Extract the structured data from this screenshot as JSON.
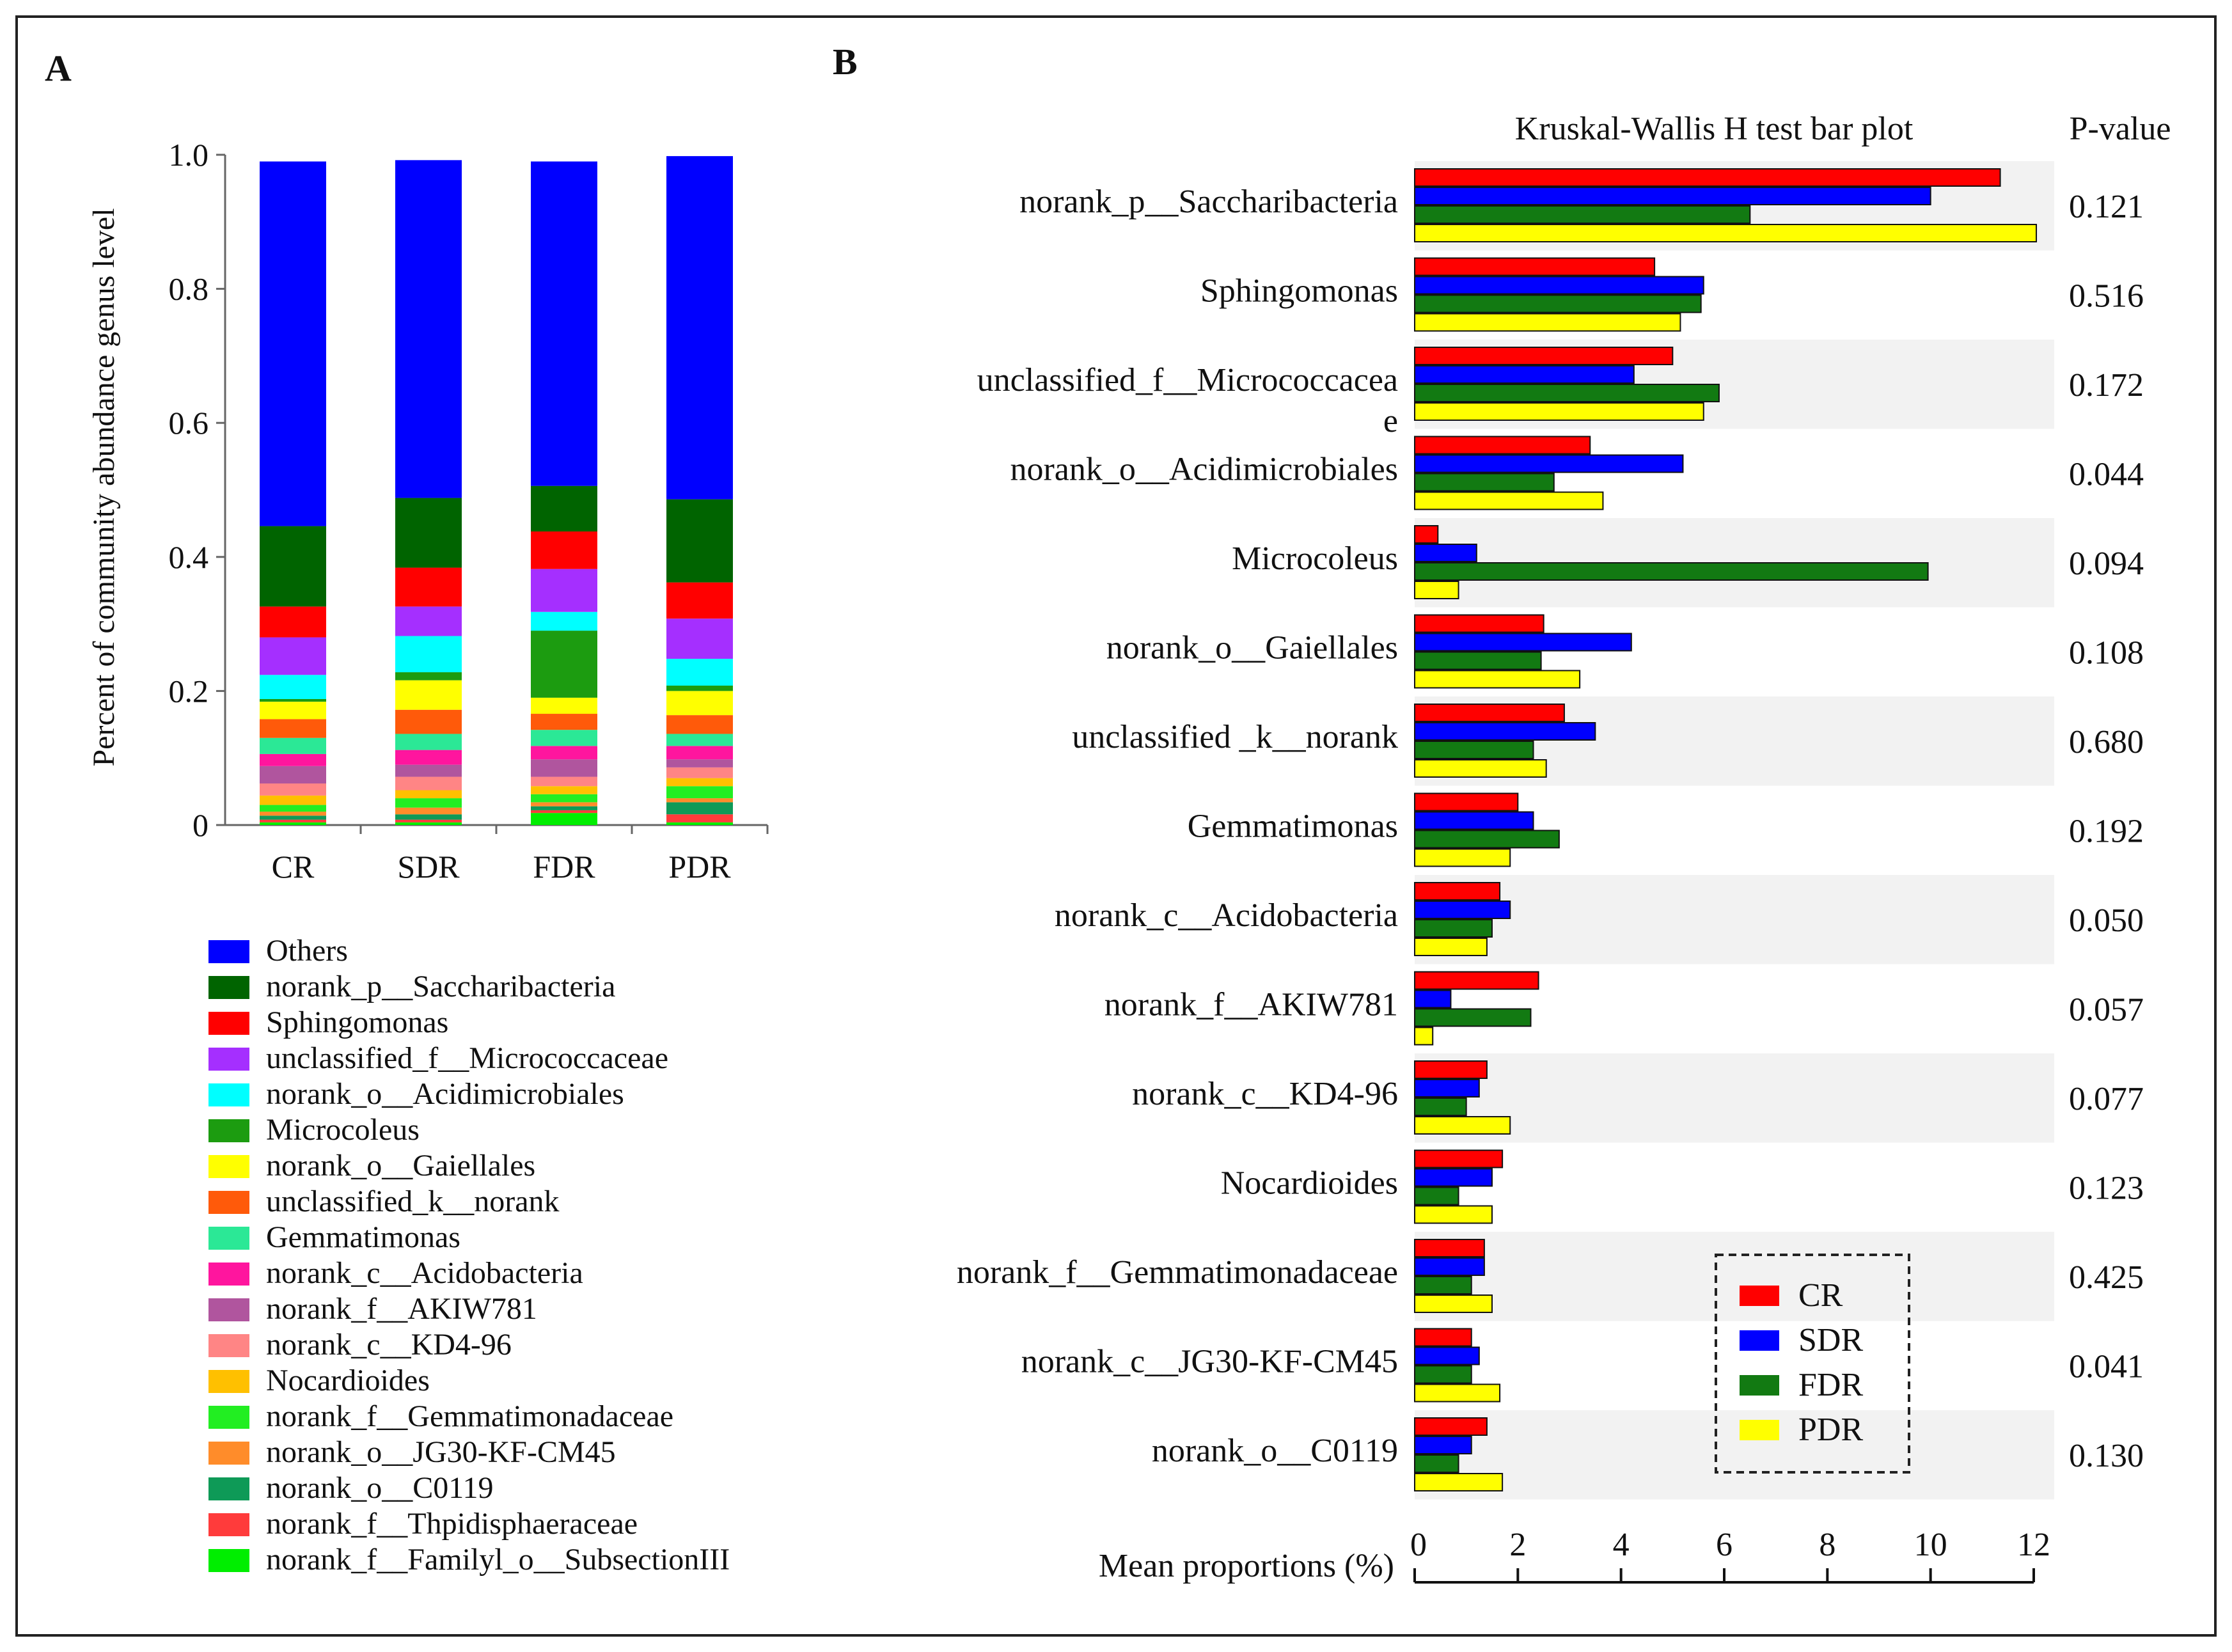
{
  "panel_labels": {
    "a": "A",
    "b": "B"
  },
  "chart_data": [
    {
      "type": "bar",
      "stacked": true,
      "panel": "A",
      "ylabel": "Percent of community abundance genus level",
      "xlabel": "",
      "ylim": [
        0,
        1.0
      ],
      "yticks": [
        "0",
        "0.2",
        "0.4",
        "0.6",
        "0.8",
        "1.0"
      ],
      "categories": [
        "CR",
        "SDR",
        "FDR",
        "PDR"
      ],
      "series": [
        {
          "name": "norank_f__Familyl_o__SubsectionIII",
          "color": "#00ee00",
          "values": [
            0.004,
            0.004,
            0.018,
            0.004
          ]
        },
        {
          "name": "norank_f__Thpidisphaeraceae",
          "color": "#ff3b3b",
          "values": [
            0.004,
            0.004,
            0.004,
            0.012
          ]
        },
        {
          "name": "norank_o__C0119",
          "color": "#0e9a57",
          "values": [
            0.006,
            0.008,
            0.006,
            0.018
          ]
        },
        {
          "name": "norank_o__JG30-KF-CM45",
          "color": "#ff8c2a",
          "values": [
            0.006,
            0.01,
            0.006,
            0.006
          ]
        },
        {
          "name": "norank_f__Gemmatimonadaceae",
          "color": "#22ee22",
          "values": [
            0.01,
            0.014,
            0.012,
            0.018
          ]
        },
        {
          "name": "Nocardioides",
          "color": "#ffc000",
          "values": [
            0.014,
            0.012,
            0.012,
            0.012
          ]
        },
        {
          "name": "norank_c__KD4-96",
          "color": "#ff8585",
          "values": [
            0.018,
            0.02,
            0.014,
            0.016
          ]
        },
        {
          "name": "norank_f__AKIW781",
          "color": "#b0559e",
          "values": [
            0.026,
            0.018,
            0.026,
            0.012
          ]
        },
        {
          "name": "norank_c__Acidobacteria",
          "color": "#ff159e",
          "values": [
            0.018,
            0.022,
            0.02,
            0.02
          ]
        },
        {
          "name": "Gemmatimonas",
          "color": "#2be896",
          "values": [
            0.024,
            0.024,
            0.024,
            0.018
          ]
        },
        {
          "name": "unclassified_k__norank",
          "color": "#ff5a0a",
          "values": [
            0.028,
            0.036,
            0.024,
            0.028
          ]
        },
        {
          "name": "norank_o__Gaiellales",
          "color": "#ffff00",
          "values": [
            0.026,
            0.044,
            0.024,
            0.036
          ]
        },
        {
          "name": "Microcoleus",
          "color": "#1c9c10",
          "values": [
            0.004,
            0.012,
            0.1,
            0.008
          ]
        },
        {
          "name": "norank_o__Acidimicrobiales",
          "color": "#00ffff",
          "values": [
            0.036,
            0.054,
            0.028,
            0.04
          ]
        },
        {
          "name": "unclassified_f__Micrococcaceae",
          "color": "#a52fff",
          "values": [
            0.056,
            0.044,
            0.064,
            0.06
          ]
        },
        {
          "name": "Sphingomonas",
          "color": "#ff0000",
          "values": [
            0.046,
            0.058,
            0.056,
            0.054
          ]
        },
        {
          "name": "norank_p__Saccharibacteria",
          "color": "#006400",
          "values": [
            0.12,
            0.104,
            0.068,
            0.124
          ]
        },
        {
          "name": "Others",
          "color": "#0000ff",
          "values": [
            0.544,
            0.504,
            0.484,
            0.512
          ]
        }
      ],
      "legend": [
        {
          "name": "Others",
          "color": "#0000ff"
        },
        {
          "name": "norank_p__Saccharibacteria",
          "color": "#006400"
        },
        {
          "name": "Sphingomonas",
          "color": "#ff0000"
        },
        {
          "name": "unclassified_f__Micrococcaceae",
          "color": "#a52fff"
        },
        {
          "name": "norank_o__Acidimicrobiales",
          "color": "#00ffff"
        },
        {
          "name": "Microcoleus",
          "color": "#1c9c10"
        },
        {
          "name": "norank_o__Gaiellales",
          "color": "#ffff00"
        },
        {
          "name": "unclassified_k__norank",
          "color": "#ff5a0a"
        },
        {
          "name": "Gemmatimonas",
          "color": "#2be896"
        },
        {
          "name": "norank_c__Acidobacteria",
          "color": "#ff159e"
        },
        {
          "name": "norank_f__AKIW781",
          "color": "#b0559e"
        },
        {
          "name": "norank_c__KD4-96",
          "color": "#ff8585"
        },
        {
          "name": "Nocardioides",
          "color": "#ffc000"
        },
        {
          "name": "norank_f__Gemmatimonadaceae",
          "color": "#22ee22"
        },
        {
          "name": "norank_o__JG30-KF-CM45",
          "color": "#ff8c2a"
        },
        {
          "name": "norank_o__C0119",
          "color": "#0e9a57"
        },
        {
          "name": "norank_f__Thpidisphaeraceae",
          "color": "#ff3b3b"
        },
        {
          "name": "norank_f__Familyl_o__SubsectionIII",
          "color": "#00ee00"
        }
      ]
    },
    {
      "type": "bar",
      "orientation": "horizontal",
      "panel": "B",
      "title": "Kruskal-Wallis H test bar plot",
      "pvalue_header": "P-value",
      "xlabel": "Mean proportions (%)",
      "xlim": [
        0,
        12
      ],
      "xticks": [
        "0",
        "2",
        "4",
        "6",
        "8",
        "10",
        "12"
      ],
      "categories": [
        {
          "label": "norank_p__Saccharibacteria",
          "pvalue": "0.121"
        },
        {
          "label": "Sphingomonas",
          "pvalue": "0.516"
        },
        {
          "label": "unclassified_f__Micrococcacea",
          "label2": "e",
          "pvalue": "0.172"
        },
        {
          "label": "norank_o__Acidimicrobiales",
          "pvalue": "0.044"
        },
        {
          "label": "Microcoleus",
          "pvalue": "0.094"
        },
        {
          "label": "norank_o__Gaiellales",
          "pvalue": "0.108"
        },
        {
          "label": "unclassified _k__norank",
          "pvalue": "0.680"
        },
        {
          "label": "Gemmatimonas",
          "pvalue": "0.192"
        },
        {
          "label": "norank_c__Acidobacteria",
          "pvalue": "0.050"
        },
        {
          "label": "norank_f__AKIW781",
          "pvalue": "0.057"
        },
        {
          "label": "norank_c__KD4-96",
          "pvalue": "0.077"
        },
        {
          "label": "Nocardioides",
          "pvalue": "0.123"
        },
        {
          "label": "norank_f__Gemmatimonadaceae",
          "pvalue": "0.425"
        },
        {
          "label": "norank_c__JG30-KF-CM45",
          "pvalue": "0.041"
        },
        {
          "label": "norank_o__C0119",
          "pvalue": "0.130"
        }
      ],
      "series": [
        {
          "name": "CR",
          "color": "#ff0000",
          "values": [
            11.35,
            4.65,
            5.0,
            3.4,
            0.45,
            2.5,
            2.9,
            2.0,
            1.65,
            2.4,
            1.4,
            1.7,
            1.35,
            1.1,
            1.4
          ]
        },
        {
          "name": "SDR",
          "color": "#0000ff",
          "values": [
            10.0,
            5.6,
            4.25,
            5.2,
            1.2,
            4.2,
            3.5,
            2.3,
            1.85,
            0.7,
            1.25,
            1.5,
            1.35,
            1.25,
            1.1
          ]
        },
        {
          "name": "FDR",
          "color": "#127a12",
          "values": [
            6.5,
            5.55,
            5.9,
            2.7,
            9.95,
            2.45,
            2.3,
            2.8,
            1.5,
            2.25,
            1.0,
            0.85,
            1.1,
            1.1,
            0.85
          ]
        },
        {
          "name": "PDR",
          "color": "#ffff00",
          "values": [
            12.05,
            5.15,
            5.6,
            3.65,
            0.85,
            3.2,
            2.55,
            1.85,
            1.4,
            0.35,
            1.85,
            1.5,
            1.5,
            1.65,
            1.7
          ]
        }
      ],
      "legend": [
        "CR",
        "SDR",
        "FDR",
        "PDR"
      ]
    }
  ]
}
